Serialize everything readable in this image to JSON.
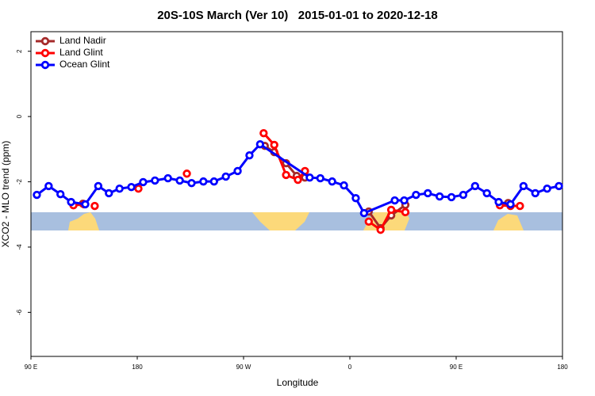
{
  "chart_data": {
    "type": "line",
    "title": "20S-10S March (Ver 10)   2015-01-01 to 2020-12-18",
    "x_label": "Longitude",
    "y_label": "XCO2 - MLO trend (ppm)",
    "xlim": [
      90,
      540
    ],
    "ylim": [
      -7.35,
      2.6
    ],
    "xticks": [
      {
        "value": 90,
        "label": "90 E"
      },
      {
        "value": 180,
        "label": "180"
      },
      {
        "value": 270,
        "label": "90 W"
      },
      {
        "value": 360,
        "label": "0"
      },
      {
        "value": 450,
        "label": "90 E"
      },
      {
        "value": 540,
        "label": "180"
      }
    ],
    "yticks": [
      -6,
      -4,
      -2,
      0,
      2
    ],
    "legend": "top-left",
    "series": [
      {
        "name": "Land Nadir",
        "color": "#a52a2a",
        "x": [
          134,
          null,
          288,
          296,
          306,
          315,
          322,
          null,
          376,
          386,
          395,
          407,
          null,
          494
        ],
        "values": [
          -2.67,
          null,
          -0.9,
          -1.09,
          -1.43,
          -1.82,
          -1.87,
          null,
          -2.91,
          -3.42,
          -3.03,
          -2.71,
          null,
          -2.65
        ]
      },
      {
        "name": "Land Glint",
        "color": "#ff0000",
        "x": [
          126,
          135,
          null,
          144,
          null,
          181,
          null,
          222,
          null,
          287,
          296,
          306,
          316,
          322,
          null,
          376,
          386,
          395,
          407,
          null,
          487,
          496,
          504
        ],
        "values": [
          -2.72,
          -2.69,
          null,
          -2.74,
          null,
          -2.21,
          null,
          -1.75,
          null,
          -0.51,
          -0.87,
          -1.79,
          -1.94,
          -1.67,
          null,
          -3.22,
          -3.47,
          -2.86,
          -2.93,
          null,
          -2.72,
          -2.74,
          -2.74
        ]
      },
      {
        "name": "Ocean Glint",
        "color": "#0000ff",
        "x": [
          95,
          105,
          115,
          124,
          136,
          147,
          156,
          165,
          175,
          185,
          195,
          206,
          216,
          226,
          236,
          245,
          255,
          265,
          275,
          284,
          326,
          335,
          345,
          355,
          365,
          372,
          398,
          406,
          416,
          426,
          436,
          446,
          456,
          466,
          476,
          486,
          496,
          507,
          517,
          527,
          537
        ],
        "values": [
          -2.4,
          -2.13,
          -2.38,
          -2.62,
          -2.69,
          -2.13,
          -2.35,
          -2.21,
          -2.16,
          -2.01,
          -1.96,
          -1.89,
          -1.96,
          -2.04,
          -1.99,
          -1.99,
          -1.84,
          -1.67,
          -1.19,
          -0.85,
          -1.87,
          -1.89,
          -1.99,
          -2.11,
          -2.5,
          -2.96,
          -2.57,
          -2.57,
          -2.4,
          -2.35,
          -2.45,
          -2.47,
          -2.4,
          -2.13,
          -2.35,
          -2.62,
          -2.69,
          -2.13,
          -2.35,
          -2.21,
          -2.13
        ]
      }
    ]
  }
}
